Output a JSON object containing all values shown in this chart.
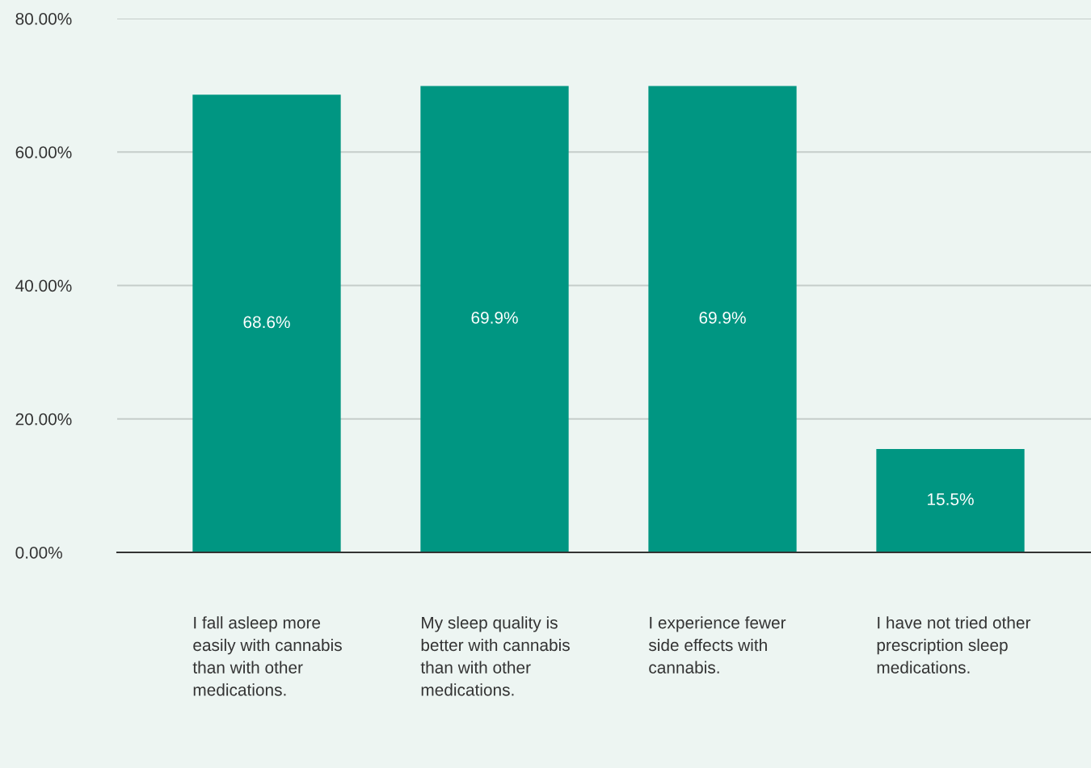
{
  "chart_data": {
    "type": "bar",
    "categories": [
      "I fall asleep more easily with cannabis than with other medications.",
      "My sleep quality is better with cannabis than with other medications.",
      "I experience fewer side effects with cannabis.",
      "I have not tried other prescription sleep medications."
    ],
    "values": [
      68.6,
      69.9,
      69.9,
      15.5
    ],
    "value_labels": [
      "68.6%",
      "69.9%",
      "69.9%",
      "15.5%"
    ],
    "color": "#009682",
    "ylim": [
      0,
      80
    ],
    "yticks": [
      {
        "value": 0,
        "label": "0.00%"
      },
      {
        "value": 20,
        "label": "20.00%"
      },
      {
        "value": 40,
        "label": "40.00%"
      },
      {
        "value": 60,
        "label": "60.00%"
      },
      {
        "value": 80,
        "label": "80.00%"
      }
    ],
    "grid": "y"
  }
}
